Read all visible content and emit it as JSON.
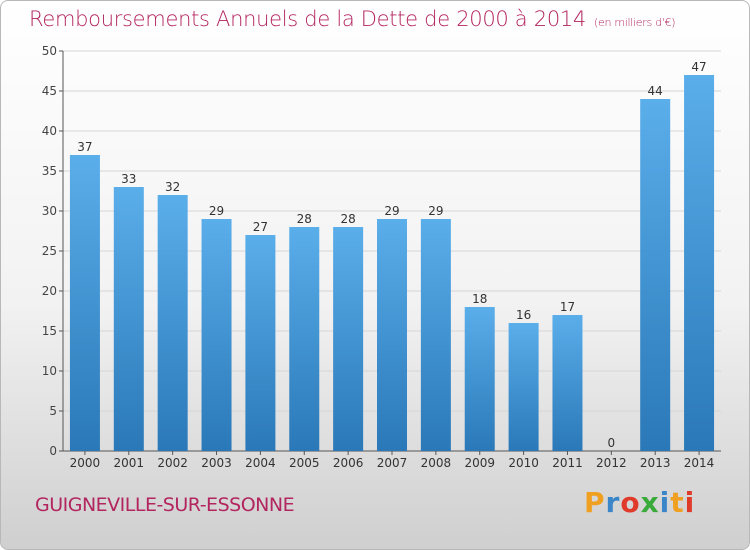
{
  "header": {
    "title": "Remboursements Annuels de la Dette de 2000 à 2014",
    "unit": "(en milliers d'€)"
  },
  "footer": {
    "commune": "GUIGNEVILLE-SUR-ESSONNE",
    "logo": [
      "P",
      "r",
      "o",
      "x",
      "i",
      "t",
      "i"
    ]
  },
  "colors": {
    "title": "#b3255f",
    "bar_top": "#5aaeea",
    "bar_bottom": "#2a78b8",
    "logo": [
      "#f0a020",
      "#3a86c8",
      "#e03a2a",
      "#3aaa3a",
      "#3a86c8",
      "#f0a020",
      "#e03a2a"
    ]
  },
  "chart_data": {
    "type": "bar",
    "title": "Remboursements Annuels de la Dette de 2000 à 2014",
    "subtitle": "(en milliers d'€)",
    "categories": [
      "2000",
      "2001",
      "2002",
      "2003",
      "2004",
      "2005",
      "2006",
      "2007",
      "2008",
      "2009",
      "2010",
      "2011",
      "2012",
      "2013",
      "2014"
    ],
    "values": [
      37,
      33,
      32,
      29,
      27,
      28,
      28,
      29,
      29,
      18,
      16,
      17,
      0,
      44,
      47
    ],
    "ylim": [
      0,
      50
    ],
    "yticks": [
      0,
      5,
      10,
      15,
      20,
      25,
      30,
      35,
      40,
      45,
      50
    ],
    "grid": true
  }
}
